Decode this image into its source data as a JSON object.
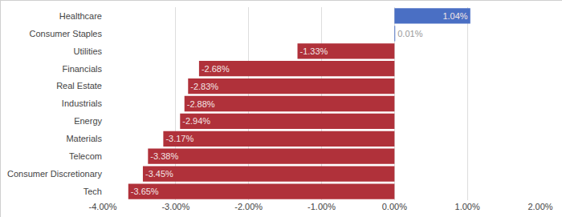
{
  "chart_data": {
    "type": "bar",
    "orientation": "horizontal",
    "categories": [
      "Healthcare",
      "Consumer Staples",
      "Utilities",
      "Financials",
      "Real Estate",
      "Industrials",
      "Energy",
      "Materials",
      "Telecom",
      "Consumer Discretionary",
      "Tech"
    ],
    "values": [
      1.04,
      0.01,
      -1.33,
      -2.68,
      -2.83,
      -2.88,
      -2.94,
      -3.17,
      -3.38,
      -3.45,
      -3.65
    ],
    "value_labels": [
      "1.04%",
      "0.01%",
      "-1.33%",
      "-2.68%",
      "-2.83%",
      "-2.88%",
      "-2.94%",
      "-3.17%",
      "-3.38%",
      "-3.45%",
      "-3.65%"
    ],
    "colors": [
      "#4a6fc4",
      "#4a6fc4",
      "#b0313a",
      "#b0313a",
      "#b0313a",
      "#b0313a",
      "#b0313a",
      "#b0313a",
      "#b0313a",
      "#b0313a",
      "#b0313a"
    ],
    "data_labels": true,
    "xlim": [
      -4,
      2
    ],
    "xticks": [
      {
        "value": -4,
        "label": "-4.00%"
      },
      {
        "value": -3,
        "label": "-3.00%"
      },
      {
        "value": -2,
        "label": "-2.00%"
      },
      {
        "value": -1,
        "label": "-1.00%"
      },
      {
        "value": 0,
        "label": "0.00%"
      },
      {
        "value": 1,
        "label": "1.00%"
      },
      {
        "value": 2,
        "label": "2.00%"
      }
    ],
    "grid": true
  }
}
